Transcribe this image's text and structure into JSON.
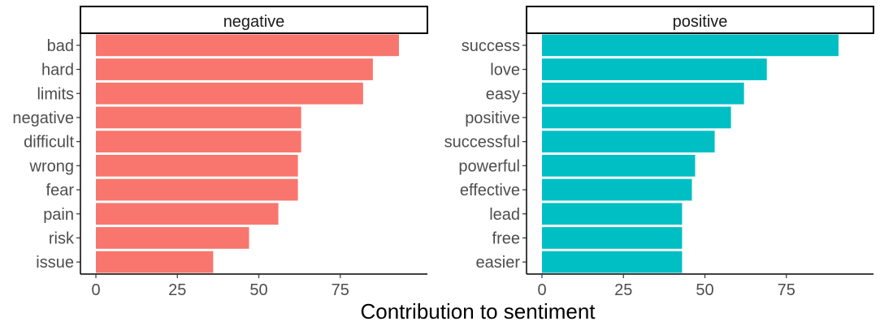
{
  "chart_data": {
    "type": "bar",
    "orientation": "horizontal",
    "xlabel": "Contribution to sentiment",
    "x_ticks": [
      0,
      25,
      50,
      75
    ],
    "grid": false,
    "legend": "none",
    "panels": [
      {
        "name": "negative",
        "color": "#F8766D",
        "xlim": [
          0,
          97
        ],
        "categories": [
          "bad",
          "hard",
          "limits",
          "negative",
          "difficult",
          "wrong",
          "fear",
          "pain",
          "risk",
          "issue"
        ],
        "values": [
          93,
          85,
          82,
          63,
          63,
          62,
          62,
          56,
          47,
          36
        ]
      },
      {
        "name": "positive",
        "color": "#00BFC4",
        "xlim": [
          0,
          97
        ],
        "categories": [
          "success",
          "love",
          "easy",
          "positive",
          "successful",
          "powerful",
          "effective",
          "lead",
          "free",
          "easier"
        ],
        "values": [
          91,
          69,
          62,
          58,
          53,
          47,
          46,
          43,
          43,
          43
        ]
      }
    ]
  }
}
